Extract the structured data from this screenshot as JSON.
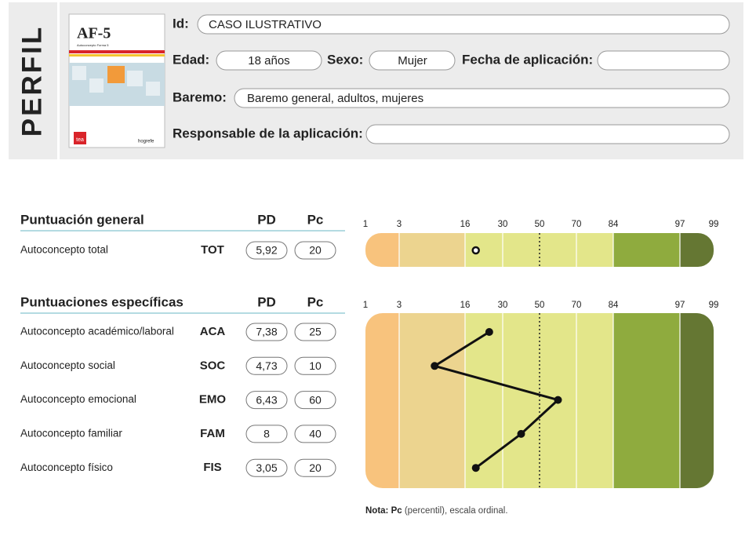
{
  "header": {
    "title": "PERFIL",
    "cover": {
      "title": "AF-5",
      "subtitle": "Autoconcepto Forma 5",
      "publisher": "tea",
      "brand": "hogrefe"
    },
    "fields": [
      {
        "label": "Id:",
        "value": "CASO ILUSTRATIVO"
      },
      {
        "label": "Edad:",
        "value": "18 años"
      },
      {
        "label": "Sexo:",
        "value": "Mujer"
      },
      {
        "label": "Fecha de aplicación:"
      },
      {
        "label": "Baremo:",
        "value": "Baremo general, adultos, mujeres"
      },
      {
        "label": "Responsable de la aplicación:"
      }
    ]
  },
  "chart_data": [
    {
      "type": "profile",
      "title": "Puntuación general",
      "columns": [
        "PD",
        "Pc"
      ],
      "xticks": [
        1,
        3,
        16,
        30,
        50,
        70,
        84,
        97,
        99
      ],
      "rows": [
        {
          "label": "Autoconcepto total",
          "code": "TOT",
          "pd": "5,92",
          "pc": 20
        }
      ]
    },
    {
      "type": "profile",
      "title": "Puntuaciones específicas",
      "columns": [
        "PD",
        "Pc"
      ],
      "xticks": [
        1,
        3,
        16,
        30,
        50,
        70,
        84,
        97,
        99
      ],
      "rows": [
        {
          "label": "Autoconcepto académico/laboral",
          "code": "ACA",
          "pd": "7,38",
          "pc": 25
        },
        {
          "label": "Autoconcepto social",
          "code": "SOC",
          "pd": "4,73",
          "pc": 10
        },
        {
          "label": "Autoconcepto emocional",
          "code": "EMO",
          "pd": "6,43",
          "pc": 60
        },
        {
          "label": "Autoconcepto familiar",
          "code": "FAM",
          "pd": "8",
          "pc": 40
        },
        {
          "label": "Autoconcepto físico",
          "code": "FIS",
          "pd": "3,05",
          "pc": 20
        }
      ]
    }
  ],
  "note": {
    "bold": "Nota: Pc",
    "text": " (percentil), escala ordinal."
  }
}
